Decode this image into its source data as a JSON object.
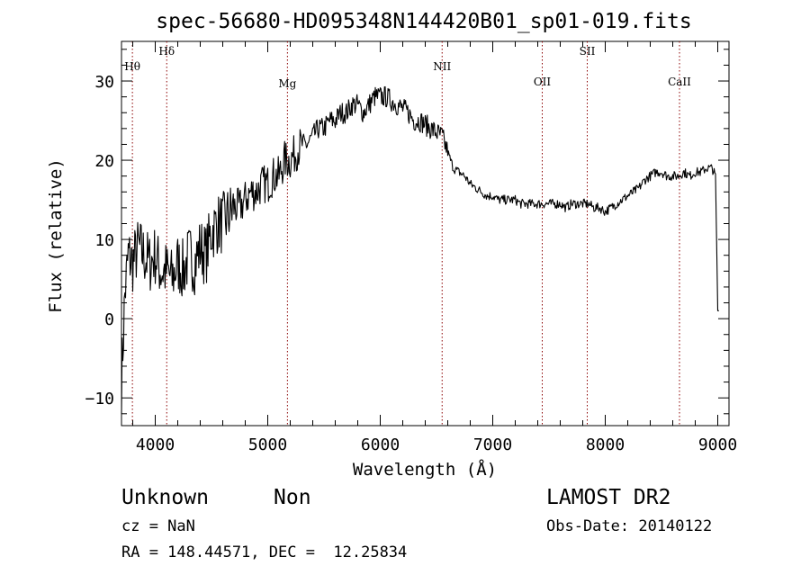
{
  "chart_data": {
    "type": "line",
    "title": "spec-56680-HD095348N144420B01_sp01-019.fits",
    "xlabel": "Wavelength (Å)",
    "ylabel": "Flux (relative)",
    "xlim": [
      3700,
      9100
    ],
    "ylim": [
      -13.5,
      35
    ],
    "x_ticks": [
      4000,
      5000,
      6000,
      7000,
      8000,
      9000
    ],
    "y_ticks": [
      -10,
      0,
      10,
      20,
      30
    ],
    "line_color": "#000000",
    "marker_color": "#8b0000",
    "grid": false,
    "spectral_lines": [
      {
        "name": "Hθ",
        "wavelength": 3797
      },
      {
        "name": "Hδ",
        "wavelength": 4102
      },
      {
        "name": "Mg",
        "wavelength": 5175
      },
      {
        "name": "NII",
        "wavelength": 6550
      },
      {
        "name": "OII",
        "wavelength": 7440
      },
      {
        "name": "SII",
        "wavelength": 7840
      },
      {
        "name": "CaII",
        "wavelength": 8660
      }
    ],
    "series": [
      {
        "x": [
          3700,
          3730,
          3760,
          3800,
          3850,
          3900,
          3950,
          4000,
          4050,
          4100,
          4150,
          4200,
          4250,
          4300,
          4350,
          4400,
          4450,
          4500,
          4550,
          4600,
          4650,
          4700,
          4750,
          4800,
          4850,
          4900,
          4950,
          5000,
          5050,
          5100,
          5150,
          5200,
          5250,
          5300,
          5350,
          5400,
          5450,
          5500,
          5550,
          5600,
          5650,
          5700,
          5750,
          5800,
          5850,
          5900,
          5950,
          6000,
          6050,
          6100,
          6150,
          6200,
          6250,
          6300,
          6350,
          6400,
          6450,
          6500,
          6550,
          6600,
          6650,
          6700,
          6750,
          6800,
          6850,
          6900,
          6950,
          7000,
          7050,
          7100,
          7150,
          7200,
          7250,
          7300,
          7350,
          7400,
          7450,
          7500,
          7550,
          7600,
          7650,
          7700,
          7750,
          7800,
          7850,
          7900,
          7950,
          8000,
          8050,
          8100,
          8150,
          8200,
          8250,
          8300,
          8350,
          8400,
          8450,
          8500,
          8550,
          8600,
          8650,
          8700,
          8750,
          8800,
          8850,
          8900,
          8950,
          8980,
          9000,
          9010
        ],
        "y": [
          -8,
          3,
          8,
          7,
          9,
          8,
          7,
          8,
          6,
          6,
          5,
          7,
          6,
          8,
          7,
          9,
          8,
          11,
          12,
          12,
          13,
          14,
          14,
          15,
          16,
          16,
          17,
          17,
          18,
          18,
          20,
          20,
          21,
          22,
          22,
          23,
          24,
          24,
          25,
          25,
          26,
          26,
          27,
          27,
          26,
          27,
          28,
          28,
          28,
          27.5,
          27,
          26.5,
          26,
          25,
          25,
          24.5,
          24,
          23.5,
          23,
          21,
          19,
          18.5,
          18,
          17,
          16.5,
          16,
          15.5,
          15.5,
          15,
          15,
          15,
          15,
          14.5,
          14.5,
          14.5,
          14.5,
          14.5,
          14.5,
          14.5,
          14.5,
          14,
          14.5,
          14.5,
          14.5,
          14.5,
          14,
          14,
          13.5,
          14,
          14.5,
          15,
          15.5,
          16,
          16.5,
          17.5,
          18,
          18.5,
          18.5,
          18,
          18,
          18,
          18.5,
          18,
          18.5,
          18.5,
          19,
          19,
          18,
          1,
          1
        ]
      }
    ]
  },
  "info": {
    "object_class": "Unknown",
    "object_subclass": "Non",
    "cz": "cz = NaN",
    "coords": "RA = 148.44571, DEC =  12.25834",
    "survey": "LAMOST DR2",
    "obs_date": "Obs-Date: 20140122"
  }
}
